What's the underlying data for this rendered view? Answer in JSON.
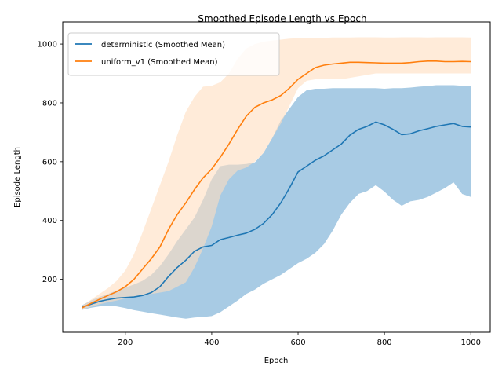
{
  "chart_data": {
    "type": "line",
    "title": "Smoothed Episode Length vs Epoch",
    "xlabel": "Epoch",
    "ylabel": "Episode Length",
    "xlim": [
      55,
      1045
    ],
    "ylim": [
      20,
      1075
    ],
    "x_ticks": [
      200,
      400,
      600,
      800,
      1000
    ],
    "y_ticks": [
      200,
      400,
      600,
      800,
      1000
    ],
    "grid": false,
    "legend_position": "upper-left",
    "series": [
      {
        "name": "deterministic (Smoothed Mean)",
        "color": "#1f77b4",
        "band_color": "#a8cbe4",
        "x": [
          100,
          120,
          140,
          160,
          180,
          200,
          220,
          240,
          260,
          280,
          300,
          320,
          340,
          360,
          380,
          400,
          420,
          440,
          460,
          480,
          500,
          520,
          540,
          560,
          580,
          600,
          620,
          640,
          660,
          680,
          700,
          720,
          740,
          760,
          780,
          800,
          820,
          840,
          860,
          880,
          900,
          920,
          940,
          960,
          980,
          1000
        ],
        "mean": [
          105,
          115,
          125,
          131,
          136,
          138,
          140,
          145,
          155,
          175,
          210,
          240,
          265,
          295,
          310,
          315,
          335,
          342,
          350,
          357,
          370,
          390,
          420,
          460,
          510,
          565,
          585,
          605,
          620,
          640,
          660,
          690,
          710,
          720,
          735,
          725,
          710,
          692,
          695,
          705,
          712,
          720,
          725,
          730,
          720,
          718
        ],
        "upper": [
          112,
          128,
          140,
          150,
          162,
          172,
          182,
          195,
          215,
          245,
          285,
          330,
          370,
          410,
          470,
          540,
          585,
          590,
          590,
          592,
          598,
          630,
          680,
          740,
          780,
          820,
          843,
          848,
          848,
          850,
          850,
          850,
          850,
          850,
          850,
          848,
          850,
          850,
          852,
          855,
          857,
          860,
          860,
          860,
          858,
          857
        ],
        "lower": [
          96,
          103,
          108,
          110,
          108,
          102,
          95,
          90,
          85,
          80,
          75,
          70,
          66,
          70,
          72,
          75,
          88,
          108,
          128,
          150,
          165,
          185,
          200,
          215,
          235,
          255,
          270,
          290,
          320,
          365,
          420,
          460,
          490,
          500,
          520,
          498,
          470,
          450,
          465,
          470,
          480,
          495,
          510,
          530,
          490,
          480
        ]
      },
      {
        "name": "uniform_v1 (Smoothed Mean)",
        "color": "#ff7f0e",
        "band_color": "#ffddc0",
        "x": [
          100,
          120,
          140,
          160,
          180,
          200,
          220,
          240,
          260,
          280,
          300,
          320,
          340,
          360,
          380,
          400,
          420,
          440,
          460,
          480,
          500,
          520,
          540,
          560,
          580,
          600,
          620,
          640,
          660,
          680,
          700,
          720,
          740,
          760,
          780,
          800,
          820,
          840,
          860,
          880,
          900,
          920,
          940,
          960,
          980,
          1000
        ],
        "mean": [
          103,
          118,
          132,
          145,
          158,
          175,
          200,
          235,
          270,
          310,
          370,
          420,
          460,
          505,
          545,
          575,
          615,
          660,
          710,
          755,
          785,
          800,
          810,
          825,
          850,
          880,
          900,
          920,
          928,
          932,
          935,
          938,
          938,
          937,
          936,
          935,
          935,
          935,
          937,
          940,
          942,
          942,
          940,
          940,
          941,
          940
        ],
        "upper": [
          110,
          130,
          150,
          170,
          195,
          230,
          285,
          360,
          440,
          520,
          600,
          690,
          770,
          820,
          855,
          858,
          870,
          900,
          950,
          985,
          1000,
          1008,
          1012,
          1015,
          1018,
          1020,
          1020,
          1020,
          1021,
          1022,
          1022,
          1022,
          1023,
          1023,
          1023,
          1022,
          1022,
          1023,
          1023,
          1023,
          1022,
          1023,
          1023,
          1023,
          1023,
          1022
        ],
        "lower": [
          97,
          106,
          115,
          122,
          128,
          135,
          140,
          145,
          150,
          155,
          160,
          175,
          190,
          240,
          305,
          380,
          485,
          540,
          570,
          580,
          600,
          630,
          680,
          730,
          790,
          850,
          875,
          880,
          880,
          880,
          880,
          885,
          890,
          895,
          900,
          900,
          900,
          900,
          900,
          900,
          900,
          900,
          900,
          900,
          900,
          900
        ]
      }
    ]
  }
}
